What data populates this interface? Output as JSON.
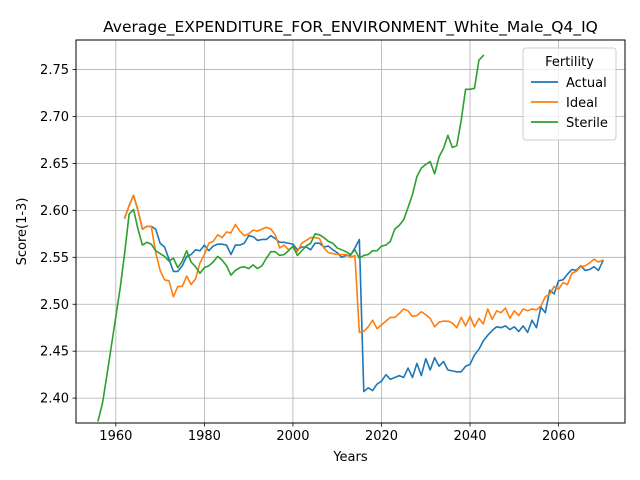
{
  "chart_data": {
    "type": "line",
    "title": "Average_EXPENDITURE_FOR_ENVIRONMENT_White_Male_Q4_IQ",
    "xlabel": "Years",
    "ylabel": "Score(1-3)",
    "xlim": [
      1951,
      2075
    ],
    "ylim": [
      2.3735,
      2.7815
    ],
    "grid": true,
    "legend": {
      "title": "Fertility",
      "placement": "top-right"
    },
    "x_ticks": [
      1960,
      1980,
      2000,
      2020,
      2040,
      2060
    ],
    "x_tick_labels": [
      "1960",
      "1980",
      "2000",
      "2020",
      "2040",
      "2060"
    ],
    "y_ticks": [
      2.4,
      2.45,
      2.5,
      2.55,
      2.6,
      2.65,
      2.7,
      2.75
    ],
    "y_tick_labels": [
      "2.40",
      "2.45",
      "2.50",
      "2.55",
      "2.60",
      "2.65",
      "2.70",
      "2.75"
    ],
    "series": [
      {
        "name": "Actual",
        "color": "#1f77b4",
        "points": [
          [
            1962,
            2.592
          ],
          [
            1963,
            2.605
          ],
          [
            1964,
            2.616
          ],
          [
            1965,
            2.6
          ],
          [
            1966,
            2.58
          ],
          [
            1967,
            2.583
          ],
          [
            1968,
            2.583
          ],
          [
            1969,
            2.58
          ],
          [
            1970,
            2.565
          ],
          [
            1971,
            2.561
          ],
          [
            1972,
            2.548
          ],
          [
            1973,
            2.535
          ],
          [
            1974,
            2.535
          ],
          [
            1975,
            2.541
          ],
          [
            1976,
            2.551
          ],
          [
            1977,
            2.553
          ],
          [
            1978,
            2.558
          ],
          [
            1979,
            2.557
          ],
          [
            1980,
            2.563
          ],
          [
            1981,
            2.557
          ],
          [
            1982,
            2.562
          ],
          [
            1983,
            2.564
          ],
          [
            1984,
            2.564
          ],
          [
            1985,
            2.563
          ],
          [
            1986,
            2.553
          ],
          [
            1987,
            2.563
          ],
          [
            1988,
            2.563
          ],
          [
            1989,
            2.565
          ],
          [
            1990,
            2.573
          ],
          [
            1991,
            2.572
          ],
          [
            1992,
            2.568
          ],
          [
            1993,
            2.569
          ],
          [
            1994,
            2.569
          ],
          [
            1995,
            2.573
          ],
          [
            1996,
            2.57
          ],
          [
            1997,
            2.566
          ],
          [
            1998,
            2.566
          ],
          [
            1999,
            2.565
          ],
          [
            2000,
            2.564
          ],
          [
            2001,
            2.558
          ],
          [
            2002,
            2.561
          ],
          [
            2003,
            2.561
          ],
          [
            2004,
            2.558
          ],
          [
            2005,
            2.565
          ],
          [
            2006,
            2.565
          ],
          [
            2007,
            2.561
          ],
          [
            2008,
            2.562
          ],
          [
            2009,
            2.558
          ],
          [
            2010,
            2.555
          ],
          [
            2011,
            2.55
          ],
          [
            2012,
            2.552
          ],
          [
            2013,
            2.552
          ],
          [
            2014,
            2.56
          ],
          [
            2015,
            2.569
          ],
          [
            2016,
            2.407
          ],
          [
            2017,
            2.411
          ],
          [
            2018,
            2.408
          ],
          [
            2019,
            2.415
          ],
          [
            2020,
            2.418
          ],
          [
            2021,
            2.425
          ],
          [
            2022,
            2.42
          ],
          [
            2023,
            2.422
          ],
          [
            2024,
            2.424
          ],
          [
            2025,
            2.422
          ],
          [
            2026,
            2.432
          ],
          [
            2027,
            2.422
          ],
          [
            2028,
            2.437
          ],
          [
            2029,
            2.424
          ],
          [
            2030,
            2.442
          ],
          [
            2031,
            2.43
          ],
          [
            2032,
            2.443
          ],
          [
            2033,
            2.434
          ],
          [
            2034,
            2.439
          ],
          [
            2035,
            2.43
          ],
          [
            2036,
            2.429
          ],
          [
            2037,
            2.428
          ],
          [
            2038,
            2.428
          ],
          [
            2039,
            2.434
          ],
          [
            2040,
            2.436
          ],
          [
            2041,
            2.446
          ],
          [
            2042,
            2.452
          ],
          [
            2043,
            2.461
          ],
          [
            2044,
            2.467
          ],
          [
            2045,
            2.472
          ],
          [
            2046,
            2.476
          ],
          [
            2047,
            2.475
          ],
          [
            2048,
            2.477
          ],
          [
            2049,
            2.473
          ],
          [
            2050,
            2.476
          ],
          [
            2051,
            2.471
          ],
          [
            2052,
            2.477
          ],
          [
            2053,
            2.47
          ],
          [
            2054,
            2.483
          ],
          [
            2055,
            2.475
          ],
          [
            2056,
            2.497
          ],
          [
            2057,
            2.491
          ],
          [
            2058,
            2.515
          ],
          [
            2059,
            2.511
          ],
          [
            2060,
            2.525
          ],
          [
            2061,
            2.526
          ],
          [
            2062,
            2.532
          ],
          [
            2063,
            2.537
          ],
          [
            2064,
            2.536
          ],
          [
            2065,
            2.541
          ],
          [
            2066,
            2.536
          ],
          [
            2067,
            2.537
          ],
          [
            2068,
            2.54
          ],
          [
            2069,
            2.536
          ],
          [
            2070,
            2.546
          ]
        ]
      },
      {
        "name": "Ideal",
        "color": "#ff7f0e",
        "points": [
          [
            1962,
            2.592
          ],
          [
            1963,
            2.605
          ],
          [
            1964,
            2.616
          ],
          [
            1965,
            2.6
          ],
          [
            1966,
            2.58
          ],
          [
            1967,
            2.583
          ],
          [
            1968,
            2.583
          ],
          [
            1969,
            2.555
          ],
          [
            1970,
            2.536
          ],
          [
            1971,
            2.526
          ],
          [
            1972,
            2.525
          ],
          [
            1973,
            2.508
          ],
          [
            1974,
            2.519
          ],
          [
            1975,
            2.519
          ],
          [
            1976,
            2.53
          ],
          [
            1977,
            2.521
          ],
          [
            1978,
            2.527
          ],
          [
            1979,
            2.544
          ],
          [
            1980,
            2.553
          ],
          [
            1981,
            2.565
          ],
          [
            1982,
            2.567
          ],
          [
            1983,
            2.574
          ],
          [
            1984,
            2.571
          ],
          [
            1985,
            2.577
          ],
          [
            1986,
            2.576
          ],
          [
            1987,
            2.585
          ],
          [
            1988,
            2.578
          ],
          [
            1989,
            2.573
          ],
          [
            1990,
            2.575
          ],
          [
            1991,
            2.579
          ],
          [
            1992,
            2.578
          ],
          [
            1993,
            2.58
          ],
          [
            1994,
            2.582
          ],
          [
            1995,
            2.58
          ],
          [
            1996,
            2.574
          ],
          [
            1997,
            2.56
          ],
          [
            1998,
            2.563
          ],
          [
            1999,
            2.558
          ],
          [
            2000,
            2.561
          ],
          [
            2001,
            2.556
          ],
          [
            2002,
            2.565
          ],
          [
            2003,
            2.568
          ],
          [
            2004,
            2.571
          ],
          [
            2005,
            2.571
          ],
          [
            2006,
            2.57
          ],
          [
            2007,
            2.56
          ],
          [
            2008,
            2.555
          ],
          [
            2009,
            2.554
          ],
          [
            2010,
            2.553
          ],
          [
            2011,
            2.553
          ],
          [
            2012,
            2.553
          ],
          [
            2013,
            2.55
          ],
          [
            2014,
            2.552
          ],
          [
            2015,
            2.47
          ],
          [
            2016,
            2.471
          ],
          [
            2017,
            2.476
          ],
          [
            2018,
            2.483
          ],
          [
            2019,
            2.474
          ],
          [
            2020,
            2.478
          ],
          [
            2021,
            2.482
          ],
          [
            2022,
            2.486
          ],
          [
            2023,
            2.486
          ],
          [
            2024,
            2.49
          ],
          [
            2025,
            2.495
          ],
          [
            2026,
            2.493
          ],
          [
            2027,
            2.487
          ],
          [
            2028,
            2.488
          ],
          [
            2029,
            2.492
          ],
          [
            2030,
            2.489
          ],
          [
            2031,
            2.485
          ],
          [
            2032,
            2.476
          ],
          [
            2033,
            2.481
          ],
          [
            2034,
            2.482
          ],
          [
            2035,
            2.482
          ],
          [
            2036,
            2.48
          ],
          [
            2037,
            2.475
          ],
          [
            2038,
            2.486
          ],
          [
            2039,
            2.477
          ],
          [
            2040,
            2.487
          ],
          [
            2041,
            2.476
          ],
          [
            2042,
            2.485
          ],
          [
            2043,
            2.479
          ],
          [
            2044,
            2.495
          ],
          [
            2045,
            2.484
          ],
          [
            2046,
            2.493
          ],
          [
            2047,
            2.491
          ],
          [
            2048,
            2.496
          ],
          [
            2049,
            2.485
          ],
          [
            2050,
            2.493
          ],
          [
            2051,
            2.488
          ],
          [
            2052,
            2.495
          ],
          [
            2053,
            2.493
          ],
          [
            2054,
            2.495
          ],
          [
            2055,
            2.494
          ],
          [
            2056,
            2.498
          ],
          [
            2057,
            2.508
          ],
          [
            2058,
            2.511
          ],
          [
            2059,
            2.519
          ],
          [
            2060,
            2.516
          ],
          [
            2061,
            2.523
          ],
          [
            2062,
            2.521
          ],
          [
            2063,
            2.533
          ],
          [
            2064,
            2.535
          ],
          [
            2065,
            2.54
          ],
          [
            2066,
            2.541
          ],
          [
            2067,
            2.544
          ],
          [
            2068,
            2.548
          ],
          [
            2069,
            2.545
          ],
          [
            2070,
            2.547
          ]
        ]
      },
      {
        "name": "Sterile",
        "color": "#2ca02c",
        "points": [
          [
            1956,
            2.376
          ],
          [
            1957,
            2.395
          ],
          [
            1958,
            2.425
          ],
          [
            1959,
            2.456
          ],
          [
            1960,
            2.487
          ],
          [
            1961,
            2.518
          ],
          [
            1962,
            2.555
          ],
          [
            1963,
            2.596
          ],
          [
            1964,
            2.601
          ],
          [
            1965,
            2.58
          ],
          [
            1966,
            2.563
          ],
          [
            1967,
            2.566
          ],
          [
            1968,
            2.564
          ],
          [
            1969,
            2.557
          ],
          [
            1970,
            2.554
          ],
          [
            1971,
            2.551
          ],
          [
            1972,
            2.546
          ],
          [
            1973,
            2.549
          ],
          [
            1974,
            2.539
          ],
          [
            1975,
            2.546
          ],
          [
            1976,
            2.557
          ],
          [
            1977,
            2.545
          ],
          [
            1978,
            2.54
          ],
          [
            1979,
            2.533
          ],
          [
            1980,
            2.539
          ],
          [
            1981,
            2.541
          ],
          [
            1982,
            2.545
          ],
          [
            1983,
            2.551
          ],
          [
            1984,
            2.547
          ],
          [
            1985,
            2.541
          ],
          [
            1986,
            2.531
          ],
          [
            1987,
            2.536
          ],
          [
            1988,
            2.539
          ],
          [
            1989,
            2.54
          ],
          [
            1990,
            2.538
          ],
          [
            1991,
            2.542
          ],
          [
            1992,
            2.538
          ],
          [
            1993,
            2.541
          ],
          [
            1994,
            2.549
          ],
          [
            1995,
            2.556
          ],
          [
            1996,
            2.556
          ],
          [
            1997,
            2.552
          ],
          [
            1998,
            2.553
          ],
          [
            1999,
            2.557
          ],
          [
            2000,
            2.562
          ],
          [
            2001,
            2.552
          ],
          [
            2002,
            2.557
          ],
          [
            2003,
            2.562
          ],
          [
            2004,
            2.565
          ],
          [
            2005,
            2.575
          ],
          [
            2006,
            2.574
          ],
          [
            2007,
            2.571
          ],
          [
            2008,
            2.567
          ],
          [
            2009,
            2.565
          ],
          [
            2010,
            2.56
          ],
          [
            2011,
            2.558
          ],
          [
            2012,
            2.556
          ],
          [
            2013,
            2.553
          ],
          [
            2014,
            2.558
          ],
          [
            2015,
            2.549
          ],
          [
            2016,
            2.552
          ],
          [
            2017,
            2.553
          ],
          [
            2018,
            2.557
          ],
          [
            2019,
            2.557
          ],
          [
            2020,
            2.562
          ],
          [
            2021,
            2.563
          ],
          [
            2022,
            2.567
          ],
          [
            2023,
            2.58
          ],
          [
            2024,
            2.584
          ],
          [
            2025,
            2.59
          ],
          [
            2026,
            2.603
          ],
          [
            2027,
            2.617
          ],
          [
            2028,
            2.636
          ],
          [
            2029,
            2.645
          ],
          [
            2030,
            2.649
          ],
          [
            2031,
            2.652
          ],
          [
            2032,
            2.639
          ],
          [
            2033,
            2.657
          ],
          [
            2034,
            2.666
          ],
          [
            2035,
            2.68
          ],
          [
            2036,
            2.667
          ],
          [
            2037,
            2.669
          ],
          [
            2038,
            2.696
          ],
          [
            2039,
            2.729
          ],
          [
            2040,
            2.729
          ],
          [
            2041,
            2.73
          ],
          [
            2042,
            2.76
          ],
          [
            2043,
            2.765
          ]
        ]
      }
    ]
  }
}
